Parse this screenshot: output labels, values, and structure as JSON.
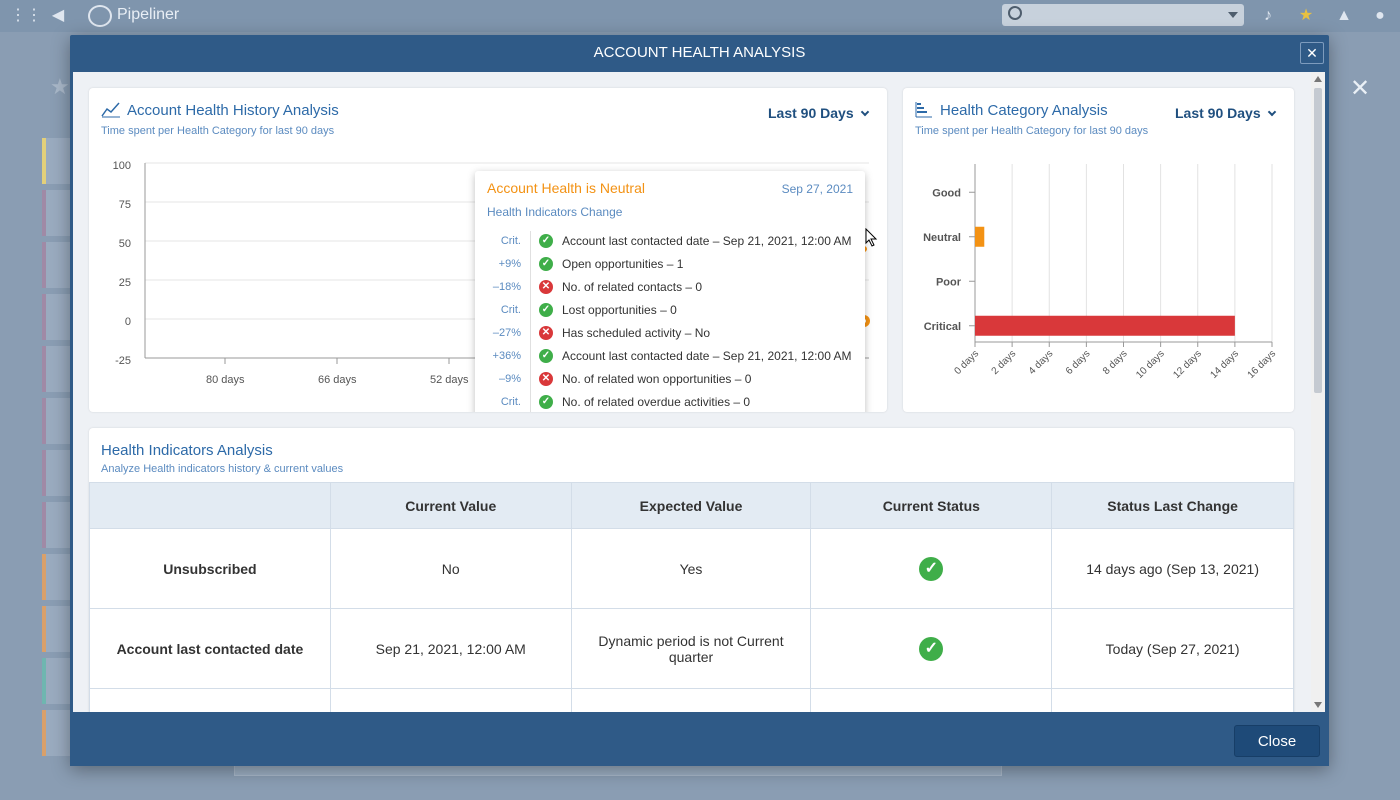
{
  "app": {
    "logo_text": "Pipeliner"
  },
  "modal": {
    "title": "ACCOUNT HEALTH ANALYSIS",
    "close_x": "✕",
    "close_button": "Close"
  },
  "history_card": {
    "title": "Account Health History Analysis",
    "subtitle": "Time spent per Health Category for last 90 days",
    "period": "Last 90 Days",
    "chart_data": {
      "type": "line",
      "y_ticks": [
        "100",
        "75",
        "50",
        "25",
        "0",
        "-25"
      ],
      "x_ticks": [
        "80 days",
        "66 days",
        "52 days"
      ],
      "ylim": [
        -25,
        100
      ],
      "series_color": "#f39214"
    }
  },
  "tooltip": {
    "title": "Account Health is Neutral",
    "date": "Sep 27, 2021",
    "subtitle": "Health Indicators Change",
    "rows": [
      {
        "pct": "Crit.",
        "status": "ok",
        "text": "Account last contacted date – Sep 21, 2021, 12:00 AM"
      },
      {
        "pct": "+9%",
        "status": "ok",
        "text": "Open opportunities – 1"
      },
      {
        "pct": "–18%",
        "status": "bad",
        "text": "No. of related contacts – 0"
      },
      {
        "pct": "Crit.",
        "status": "ok",
        "text": "Lost opportunities – 0"
      },
      {
        "pct": "–27%",
        "status": "bad",
        "text": "Has scheduled activity – No"
      },
      {
        "pct": "+36%",
        "status": "ok",
        "text": "Account last contacted date – Sep 21, 2021, 12:00 AM"
      },
      {
        "pct": "–9%",
        "status": "bad",
        "text": "No. of related won opportunities – 0"
      },
      {
        "pct": "Crit.",
        "status": "ok",
        "text": "No. of related overdue activities – 0"
      }
    ]
  },
  "category_card": {
    "title": "Health Category Analysis",
    "subtitle": "Time spent per Health Category for last 90 days",
    "period": "Last 90 Days",
    "chart_data": {
      "type": "bar",
      "orientation": "horizontal",
      "categories": [
        "Good",
        "Neutral",
        "Poor",
        "Critical"
      ],
      "values": [
        0,
        0.5,
        0,
        14
      ],
      "colors": [
        "#f39214",
        "#f39214",
        "#d9383a",
        "#d9383a"
      ],
      "x_ticks": [
        "0 days",
        "2 days",
        "4 days",
        "6 days",
        "8 days",
        "10 days",
        "12 days",
        "14 days",
        "16 days"
      ],
      "xlim": [
        0,
        16
      ]
    }
  },
  "indicators": {
    "title": "Health Indicators Analysis",
    "subtitle": "Analyze Health indicators history & current values",
    "columns": [
      "",
      "Current Value",
      "Expected Value",
      "Current Status",
      "Status Last Change"
    ],
    "rows": [
      {
        "name": "Unsubscribed",
        "current": "No",
        "expected": "Yes",
        "status_icon": "check",
        "last_change": "14 days ago (Sep 13, 2021)"
      },
      {
        "name": "Account last contacted date",
        "current": "Sep 21, 2021, 12:00 AM",
        "expected": "Dynamic period is not Current quarter",
        "status_icon": "check",
        "last_change": "Today (Sep 27, 2021)"
      }
    ]
  }
}
